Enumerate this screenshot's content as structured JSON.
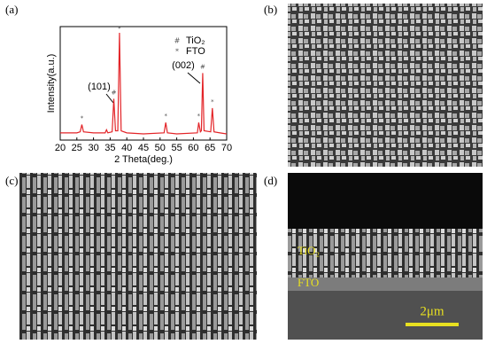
{
  "chart_data": {
    "type": "line",
    "panel_label": "(a)",
    "x_label": "2 Theta(deg.)",
    "y_label": "Intensity(a.u.)",
    "xlim": [
      20,
      70
    ],
    "xticks": [
      20,
      25,
      30,
      35,
      40,
      45,
      50,
      55,
      60,
      65,
      70
    ],
    "ylim": [
      0,
      110
    ],
    "series": [
      {
        "color": "#e32428",
        "x": [
          20,
          25,
          26,
          26.5,
          27,
          30,
          33.5,
          33.9,
          34.3,
          35.6,
          36.1,
          36.6,
          37.3,
          37.8,
          38.3,
          40,
          45,
          51.2,
          51.7,
          52.2,
          55,
          61.2,
          61.6,
          62.1,
          62.4,
          62.8,
          63.2,
          65.2,
          65.7,
          66.2,
          68,
          70
        ],
        "values": [
          7,
          7,
          8,
          15,
          8,
          7,
          7,
          10,
          7,
          8,
          40,
          9,
          9,
          104,
          9,
          7,
          6,
          7,
          17,
          7,
          6,
          7,
          17,
          8,
          9,
          65,
          9,
          8,
          31,
          8,
          7,
          6
        ]
      }
    ],
    "legend": [
      {
        "symbol": "#",
        "label": "TiO₂"
      },
      {
        "symbol": "*",
        "label": "FTO"
      }
    ],
    "peak_markers": [
      {
        "symbol": "*",
        "x": 26.5,
        "y": 21
      },
      {
        "symbol": "#",
        "x": 36.1,
        "y": 46
      },
      {
        "symbol": "*",
        "x": 37.8,
        "y": 108
      },
      {
        "symbol": "*",
        "x": 51.7,
        "y": 23
      },
      {
        "symbol": "*",
        "x": 61.6,
        "y": 23
      },
      {
        "symbol": "#",
        "x": 62.8,
        "y": 71
      },
      {
        "symbol": "*",
        "x": 65.7,
        "y": 37
      }
    ],
    "annotations": [
      "(101)",
      "(002)"
    ]
  },
  "panels": [
    {
      "label": "(b)"
    },
    {
      "label": "(c)"
    },
    {
      "label": "(d)",
      "layers": [
        "TiO₂",
        "FTO"
      ],
      "scale_bar": "2μm"
    }
  ]
}
